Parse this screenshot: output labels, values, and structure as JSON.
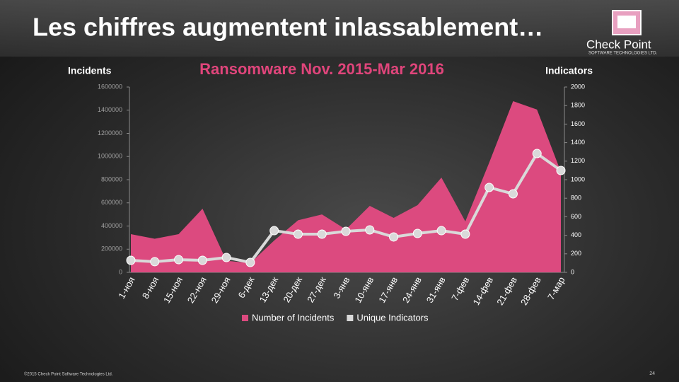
{
  "header": {
    "title": "Les chiffres augmentent inlassablement…"
  },
  "logo": {
    "name": "Check Point",
    "tagline": "SOFTWARE TECHNOLOGIES LTD."
  },
  "chart_data": {
    "type": "area_line",
    "title": "Ransomware  Nov. 2015-Mar 2016",
    "y_label": "Incidents",
    "y2_label": "Indicators",
    "categories": [
      "1-ноя",
      "8-ноя",
      "15-ноя",
      "22-ноя",
      "29-ноя",
      "6-дек",
      "13-дек",
      "20-дек",
      "27-дек",
      "3-янв",
      "10-янв",
      "17-янв",
      "24-янв",
      "31-янв",
      "7-фев",
      "14-фев",
      "21-фев",
      "28-фев",
      "7-мар"
    ],
    "series": [
      {
        "name": "Number of Incidents",
        "type": "area",
        "color": "#dc4a7f",
        "values": [
          330000,
          290000,
          330000,
          550000,
          100000,
          80000,
          275000,
          450000,
          500000,
          370000,
          574000,
          470000,
          580000,
          818000,
          440000,
          947000,
          1478000,
          1405000,
          867000
        ]
      },
      {
        "name": "Unique Indicators",
        "type": "line",
        "axis": "y2",
        "color": "#d9d9d9",
        "values": [
          130,
          115,
          137,
          130,
          160,
          107,
          450,
          412,
          412,
          443,
          458,
          382,
          420,
          450,
          412,
          916,
          847,
          1282,
          1099
        ]
      }
    ],
    "ylim": [
      0,
      1600000
    ],
    "yticks": [
      0,
      200000,
      400000,
      600000,
      800000,
      1000000,
      1200000,
      1400000,
      1600000
    ],
    "y2lim": [
      0,
      2000
    ],
    "y2ticks": [
      0,
      200,
      400,
      600,
      800,
      1000,
      1200,
      1400,
      1600,
      1800,
      2000
    ],
    "grid": false
  },
  "footer": {
    "copyright": "©2015 Check Point Software Technologies Ltd.",
    "page": "24"
  }
}
